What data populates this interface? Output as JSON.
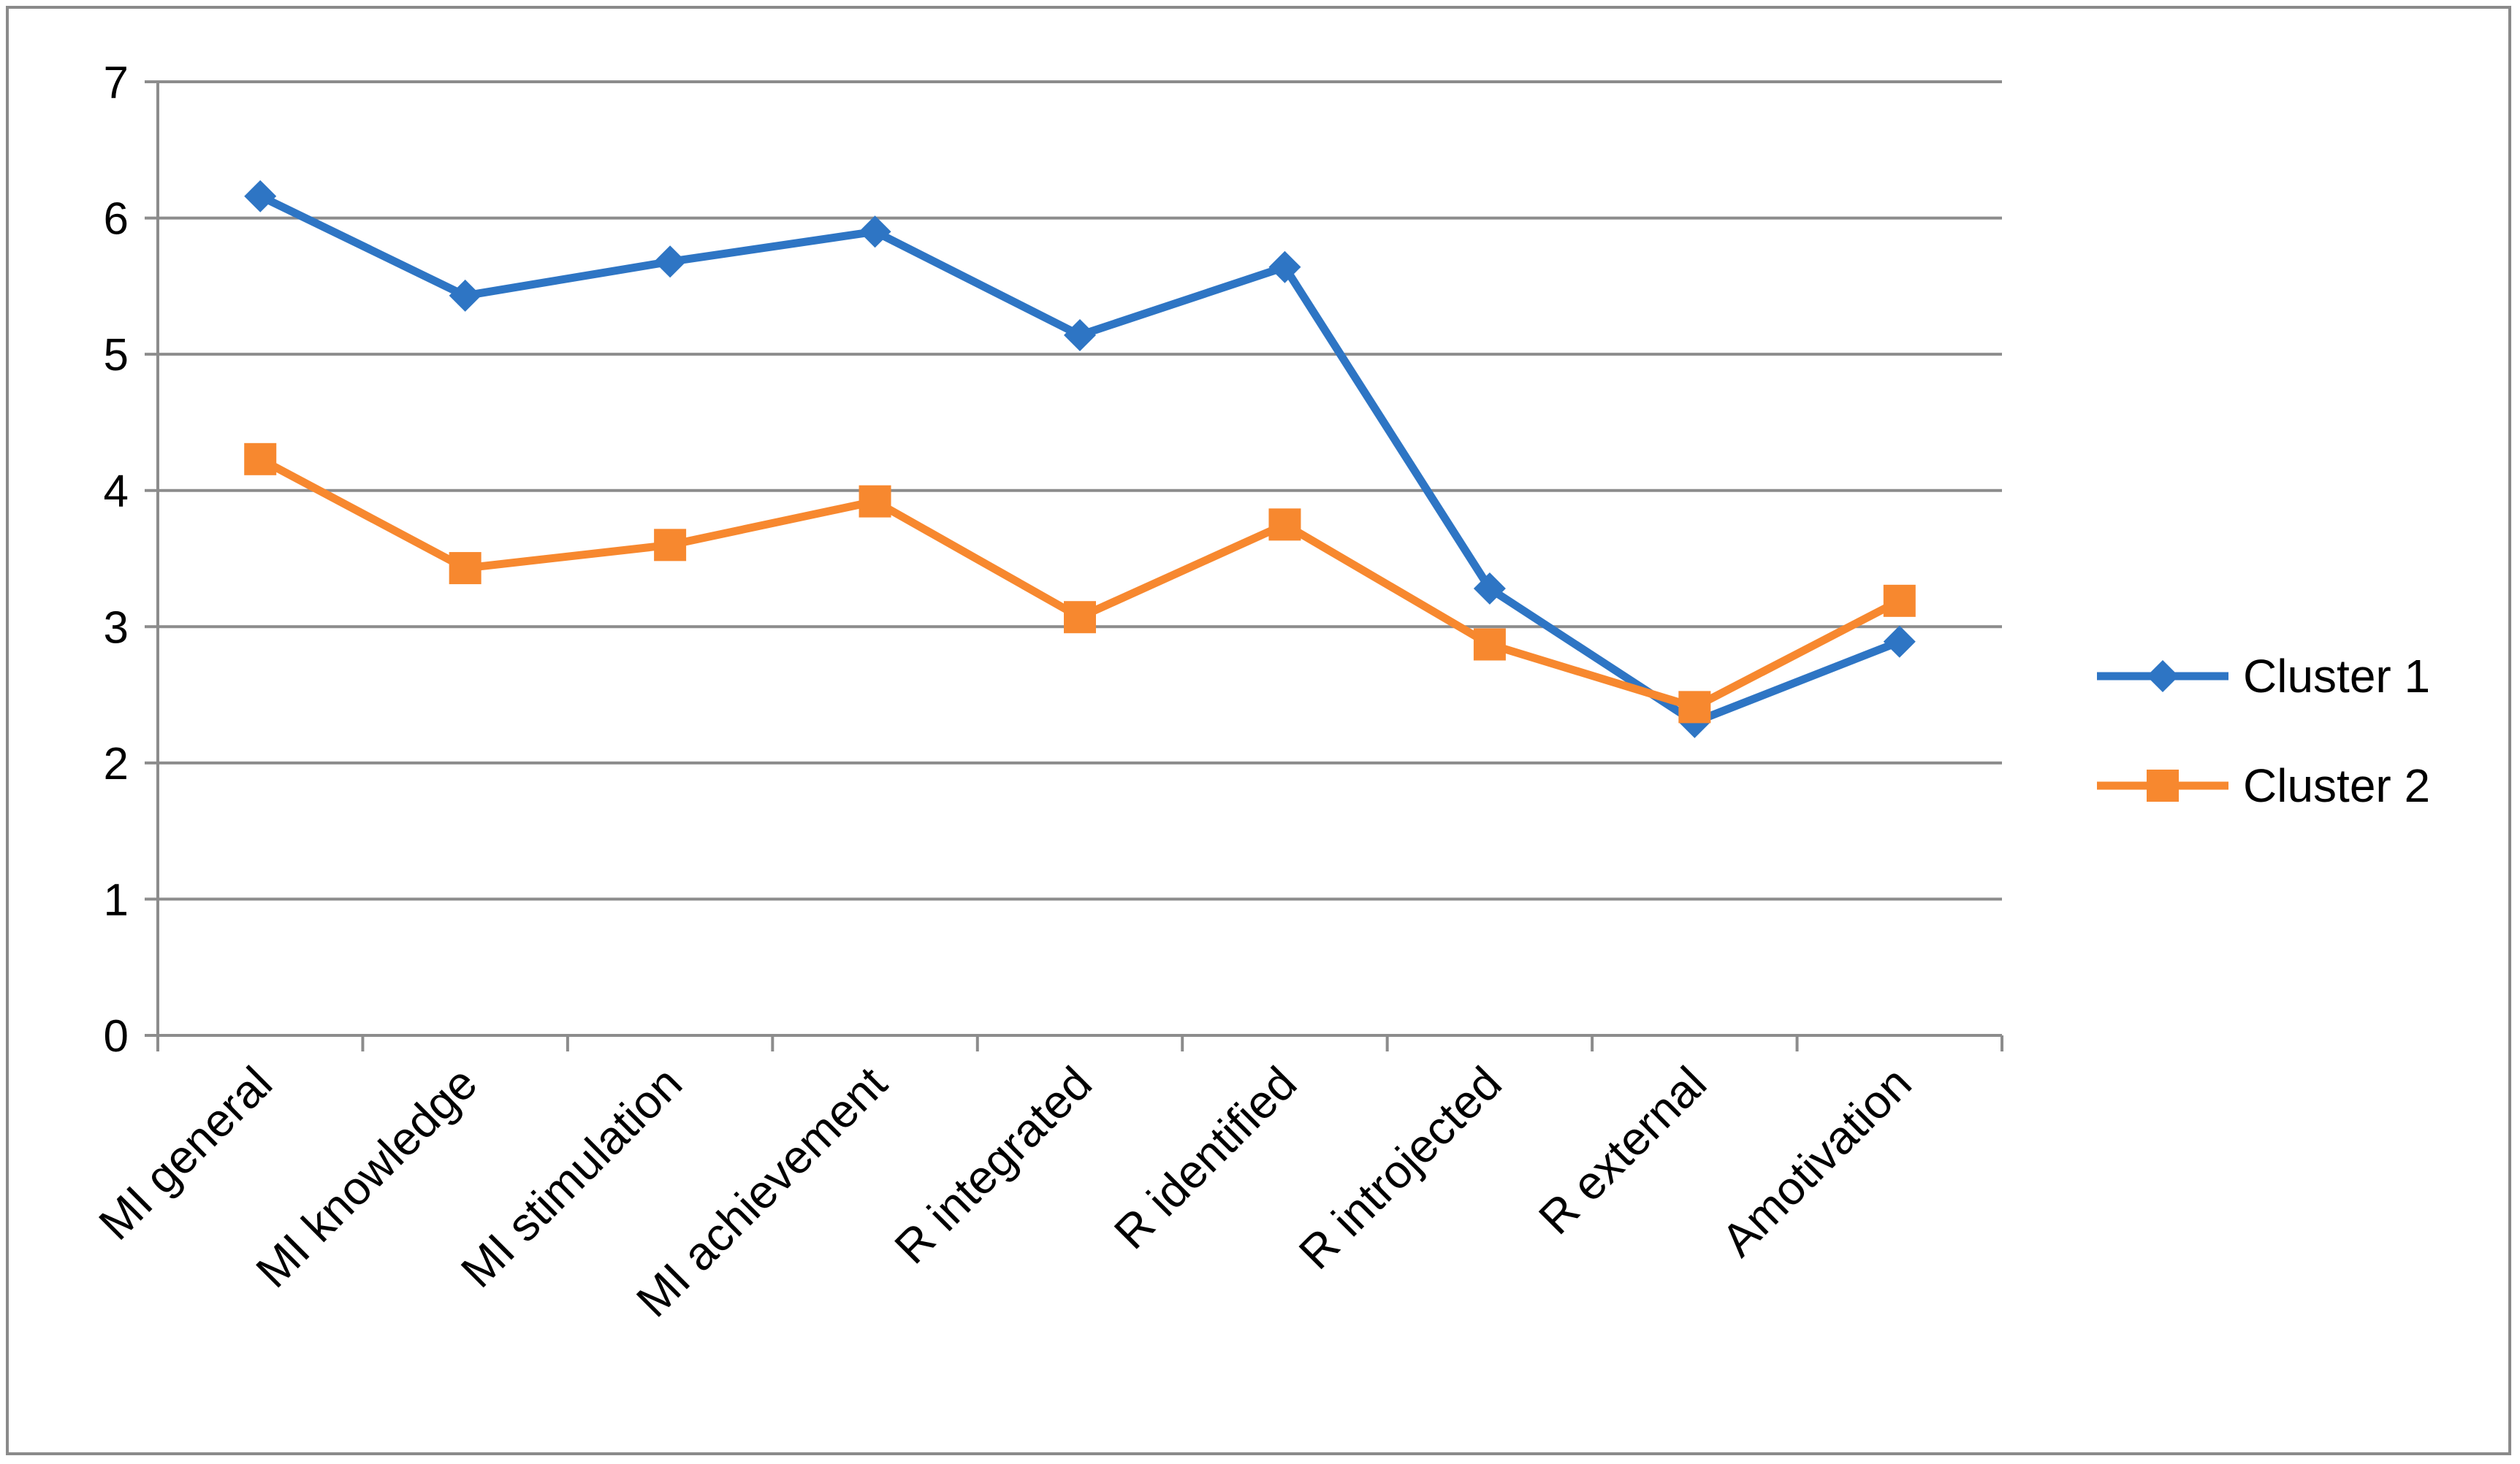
{
  "chart_data": {
    "type": "line",
    "title": "",
    "xlabel": "",
    "ylabel": "",
    "ylim": [
      0,
      7
    ],
    "yticks": [
      0,
      1,
      2,
      3,
      4,
      5,
      6,
      7
    ],
    "grid": "horizontal",
    "legend_position": "right",
    "categories": [
      "MI general",
      "MI knowledge",
      "MI stimulation",
      "MI achievement",
      "R integrated",
      "R identified",
      "R introjected",
      "R external",
      "Amotivation"
    ],
    "series": [
      {
        "name": "Cluster 1",
        "color": "#2E75C4",
        "marker": "diamond",
        "values": [
          6.16,
          5.43,
          5.68,
          5.9,
          5.14,
          5.64,
          3.28,
          2.3,
          2.89
        ]
      },
      {
        "name": "Cluster 2",
        "color": "#F7882F",
        "marker": "square",
        "values": [
          4.23,
          3.43,
          3.6,
          3.92,
          3.07,
          3.75,
          2.87,
          2.41,
          3.19
        ]
      }
    ]
  }
}
